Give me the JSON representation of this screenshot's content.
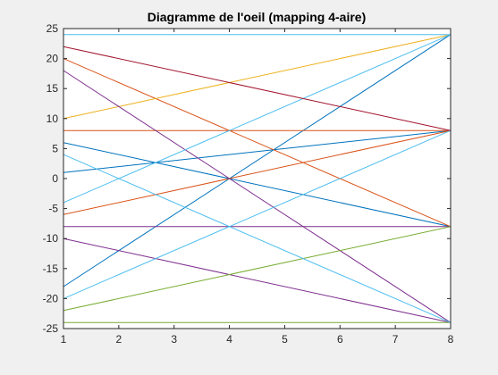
{
  "chart_data": {
    "type": "line",
    "title": "Diagramme de l'oeil (mapping 4-aire)",
    "xlabel": "",
    "ylabel": "",
    "xlim": [
      1,
      8
    ],
    "ylim": [
      -25,
      25
    ],
    "xticks": [
      1,
      2,
      3,
      4,
      5,
      6,
      7,
      8
    ],
    "yticks": [
      25,
      20,
      15,
      10,
      5,
      0,
      -5,
      -10,
      -15,
      -20,
      -25
    ],
    "grid": false,
    "series": [
      {
        "color": "#0072BD",
        "points": [
          [
            1,
            -18
          ],
          [
            8,
            24
          ]
        ]
      },
      {
        "color": "#0072BD",
        "points": [
          [
            1,
            1
          ],
          [
            8,
            8
          ]
        ]
      },
      {
        "color": "#0072BD",
        "points": [
          [
            1,
            6
          ],
          [
            8,
            -8
          ]
        ]
      },
      {
        "color": "#D95319",
        "points": [
          [
            1,
            20
          ],
          [
            8,
            -8
          ]
        ]
      },
      {
        "color": "#D95319",
        "points": [
          [
            1,
            8
          ],
          [
            8,
            8
          ]
        ]
      },
      {
        "color": "#D95319",
        "points": [
          [
            1,
            -6
          ],
          [
            8,
            8
          ]
        ]
      },
      {
        "color": "#EDB120",
        "points": [
          [
            1,
            10
          ],
          [
            8,
            24
          ]
        ]
      },
      {
        "color": "#7E2F8E",
        "points": [
          [
            1,
            18
          ],
          [
            8,
            -24
          ]
        ]
      },
      {
        "color": "#7E2F8E",
        "points": [
          [
            1,
            -8
          ],
          [
            8,
            -8
          ]
        ]
      },
      {
        "color": "#7E2F8E",
        "points": [
          [
            1,
            -10
          ],
          [
            8,
            -24
          ]
        ]
      },
      {
        "color": "#77AC30",
        "points": [
          [
            1,
            -22
          ],
          [
            8,
            -8
          ]
        ]
      },
      {
        "color": "#77AC30",
        "points": [
          [
            1,
            -24
          ],
          [
            8,
            -24
          ]
        ]
      },
      {
        "color": "#4DBEEE",
        "points": [
          [
            1,
            24
          ],
          [
            8,
            24
          ]
        ]
      },
      {
        "color": "#4DBEEE",
        "points": [
          [
            1,
            -4
          ],
          [
            8,
            24
          ]
        ]
      },
      {
        "color": "#4DBEEE",
        "points": [
          [
            1,
            -20
          ],
          [
            8,
            8
          ]
        ]
      },
      {
        "color": "#4DBEEE",
        "points": [
          [
            1,
            4
          ],
          [
            8,
            -24
          ]
        ]
      },
      {
        "color": "#A2142F",
        "points": [
          [
            1,
            22
          ],
          [
            8,
            8
          ]
        ]
      }
    ]
  }
}
